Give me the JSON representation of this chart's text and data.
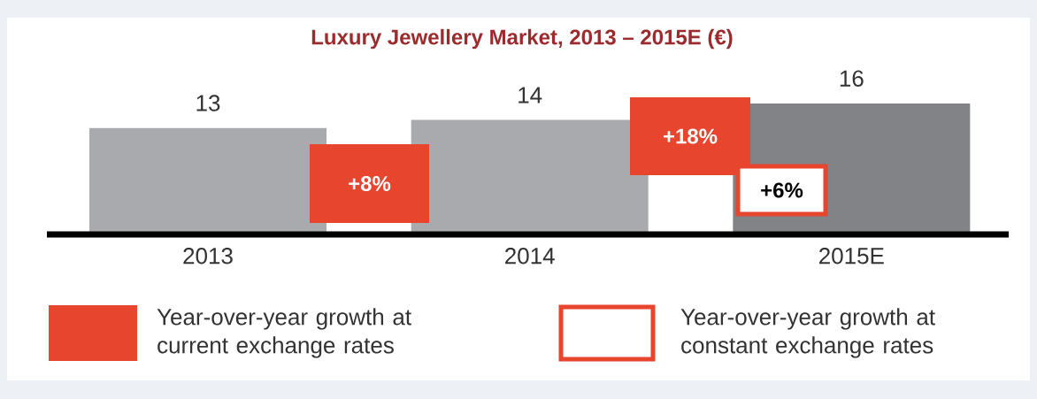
{
  "chart_data": {
    "type": "bar",
    "title": "Luxury Jewellery Market, 2013 – 2015E (€)",
    "categories": [
      "2013",
      "2014",
      "2015E"
    ],
    "values": [
      13,
      14,
      16
    ],
    "colors": [
      "#a8aaad",
      "#a8aaad",
      "#818386"
    ],
    "data_labels": true,
    "annotations": [
      "+8%",
      "+18%",
      "+6%",
      "Year-over-year growth at current exchange rates",
      "Year-over-year growth at constant exchange rates"
    ]
  }
}
